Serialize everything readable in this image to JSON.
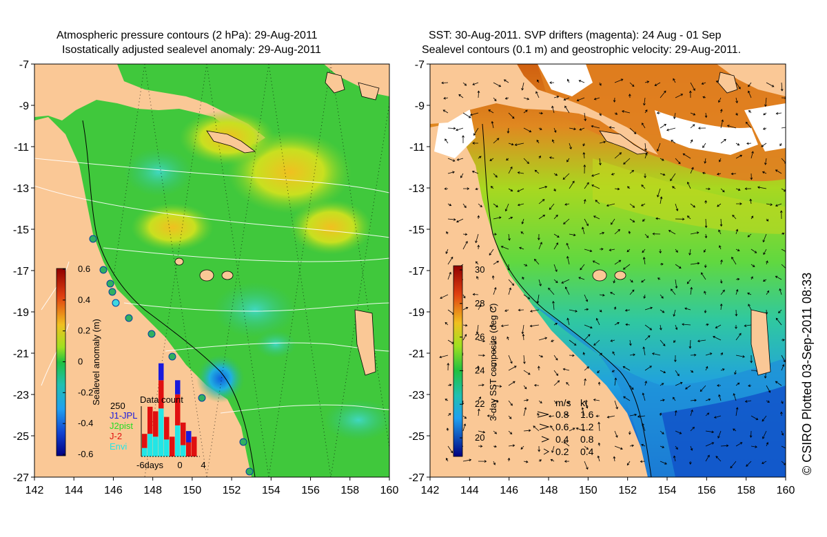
{
  "left_panel": {
    "title_line1": "Atmospheric pressure contours (2 hPa): 29-Aug-2011",
    "title_line2": "Isostatically adjusted sealevel anomaly: 29-Aug-2011",
    "lat_ticks": [
      "-7",
      "-9",
      "-11",
      "-13",
      "-15",
      "-17",
      "-19",
      "-21",
      "-23",
      "-25",
      "-27"
    ],
    "lon_ticks": [
      "142",
      "144",
      "146",
      "148",
      "150",
      "152",
      "154",
      "156",
      "158",
      "160"
    ],
    "colorbar": {
      "label": "Sealevel anomaly (m)",
      "ticks": [
        "0.6",
        "0.4",
        "0.2",
        "0",
        "-0.2",
        "-0.4",
        "-0.6"
      ],
      "range": [
        -0.6,
        0.6
      ]
    },
    "data_count": {
      "title": "Data count",
      "max_label": "250",
      "legend": [
        {
          "name": "J1-JPL",
          "color": "#1a1adc"
        },
        {
          "name": "J2pist",
          "color": "#22dd22"
        },
        {
          "name": "J-2",
          "color": "#e01010"
        },
        {
          "name": "Envi",
          "color": "#22e6e6"
        }
      ],
      "x_labels": [
        "-6days",
        "0",
        "4"
      ],
      "bars": [
        {
          "blue": 0,
          "red": 25,
          "cyan": 15
        },
        {
          "blue": 0,
          "red": 48,
          "cyan": 40
        },
        {
          "blue": 0,
          "red": 45,
          "cyan": 35
        },
        {
          "blue": 30,
          "red": 50,
          "cyan": 85
        },
        {
          "blue": 0,
          "red": 40,
          "cyan": 30
        },
        {
          "blue": 0,
          "red": 35,
          "cyan": 0
        },
        {
          "blue": 25,
          "red": 55,
          "cyan": 55
        },
        {
          "blue": 0,
          "red": 40,
          "cyan": 20
        },
        {
          "blue": 20,
          "red": 25,
          "cyan": 0
        },
        {
          "blue": 0,
          "red": 35,
          "cyan": 0
        }
      ]
    }
  },
  "right_panel": {
    "title_line1": "SST: 30-Aug-2011. SVP drifters (magenta): 24 Aug - 01 Sep",
    "title_line2": "Sealevel contours (0.1 m) and geostrophic velocity: 29-Aug-2011.",
    "lat_ticks": [
      "-7",
      "-9",
      "-11",
      "-13",
      "-15",
      "-17",
      "-19",
      "-21",
      "-23",
      "-25",
      "-27"
    ],
    "lon_ticks": [
      "142",
      "144",
      "146",
      "148",
      "150",
      "152",
      "154",
      "156",
      "158",
      "160"
    ],
    "colorbar": {
      "label": "3-day SST composite (deg C)",
      "ticks": [
        "30",
        "28",
        "26",
        "24",
        "22",
        "20"
      ],
      "range": [
        19,
        30
      ]
    },
    "velocity_legend": {
      "header_ms": "m/s",
      "header_kt": "kt",
      "rows": [
        {
          "ms": "0.8",
          "kt": "1.6"
        },
        {
          "ms": "0.6",
          "kt": "1.2"
        },
        {
          "ms": "0.4",
          "kt": "0.8"
        },
        {
          "ms": "0.2",
          "kt": "0.4"
        }
      ]
    }
  },
  "footer": "© CSIRO Plotted 03-Sep-2011 08:33",
  "colors": {
    "land": "#fac896",
    "ocean_mid": "#33cc33",
    "sst_warm": "#e07a10"
  }
}
